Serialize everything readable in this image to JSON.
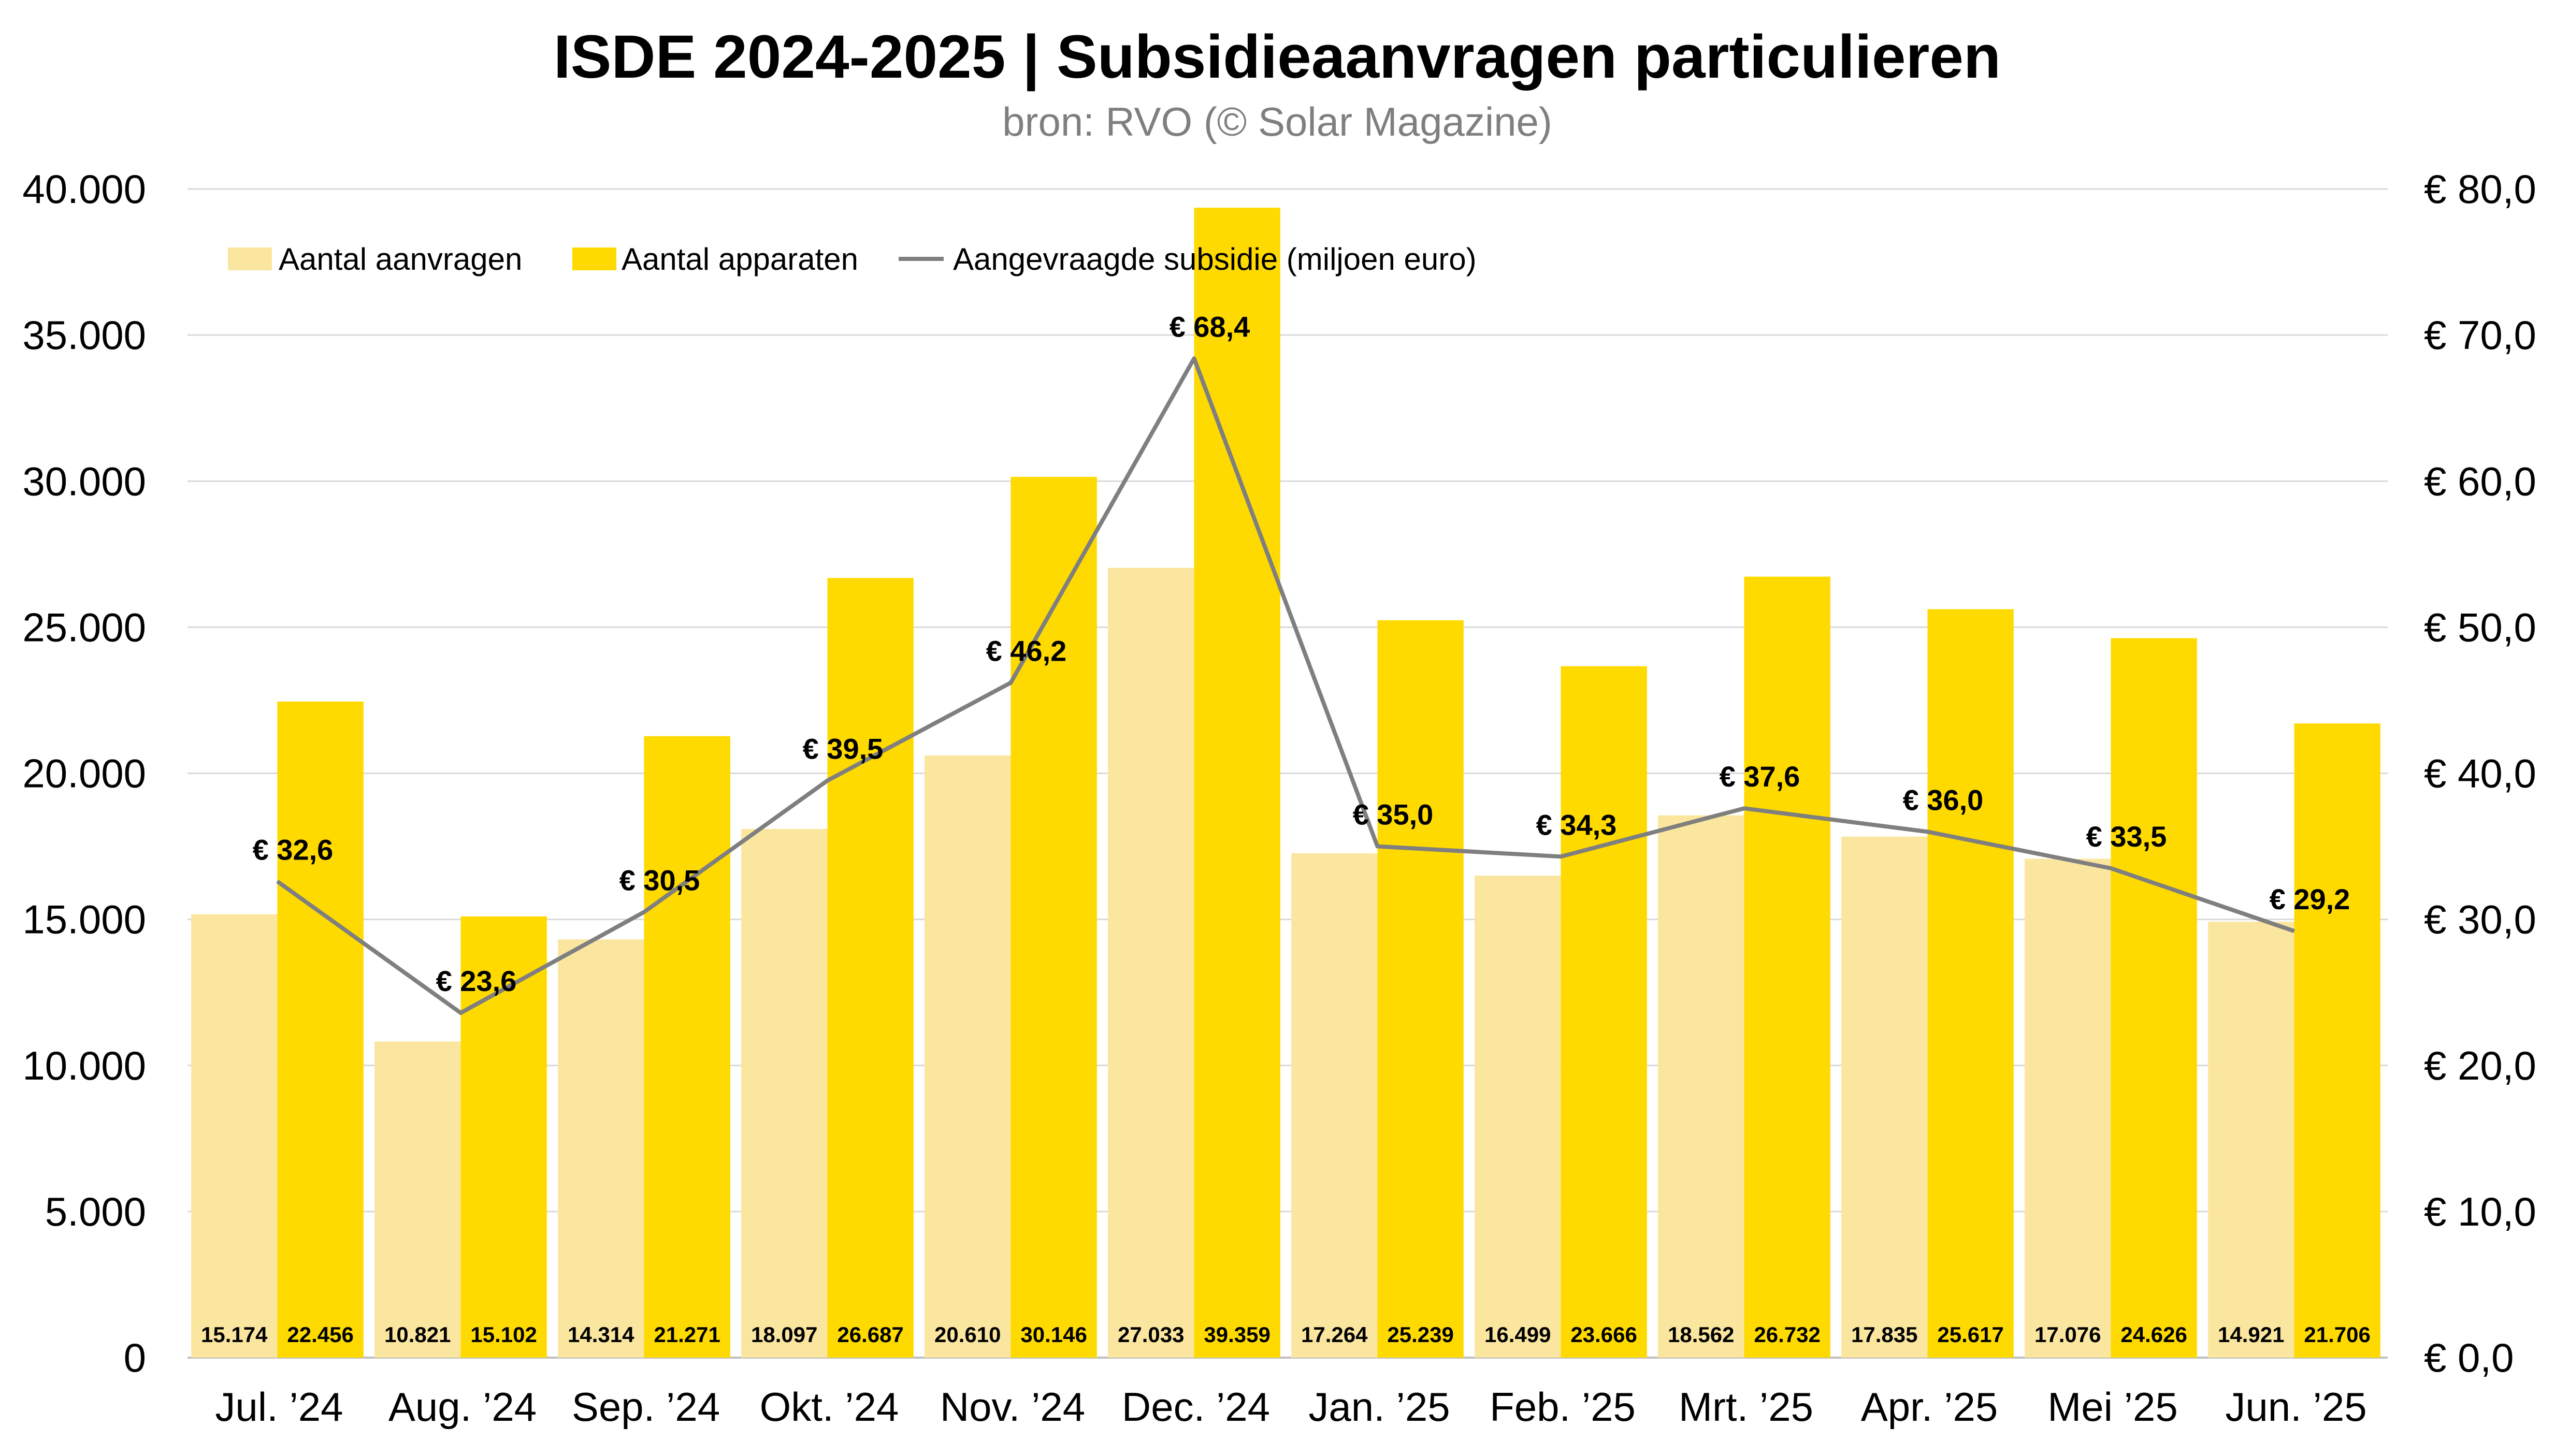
{
  "chart_data": {
    "type": "bar",
    "title": "ISDE 2024-2025 | Subsidieaanvragen particulieren",
    "subtitle": "bron: RVO (© Solar Magazine)",
    "categories": [
      "Jul. ’24",
      "Aug. ’24",
      "Sep. ’24",
      "Okt. ’24",
      "Nov. ’24",
      "Dec. ’24",
      "Jan. ’25",
      "Feb. ’25",
      "Mrt. ’25",
      "Apr. ’25",
      "Mei ’25",
      "Jun. ’25"
    ],
    "series": [
      {
        "name": "Aantal aanvragen",
        "type": "bar",
        "axis": "left",
        "color": "#FBE6A0",
        "values": [
          15174,
          10821,
          14314,
          18097,
          20610,
          27033,
          17264,
          16499,
          18562,
          17835,
          17076,
          14921
        ],
        "labels": [
          "15.174",
          "10.821",
          "14.314",
          "18.097",
          "20.610",
          "27.033",
          "17.264",
          "16.499",
          "18.562",
          "17.835",
          "17.076",
          "14.921"
        ]
      },
      {
        "name": "Aantal apparaten",
        "type": "bar",
        "axis": "left",
        "color": "#FFDA00",
        "values": [
          22456,
          15102,
          21271,
          26687,
          30146,
          39359,
          25239,
          23666,
          26732,
          25617,
          24626,
          21706
        ],
        "labels": [
          "22.456",
          "15.102",
          "21.271",
          "26.687",
          "30.146",
          "39.359",
          "25.239",
          "23.666",
          "26.732",
          "25.617",
          "24.626",
          "21.706"
        ]
      },
      {
        "name": "Aangevraagde subsidie (miljoen euro)",
        "type": "line",
        "axis": "right",
        "color": "#7F7F7F",
        "values": [
          32.6,
          23.6,
          30.5,
          39.5,
          46.2,
          68.4,
          35.0,
          34.3,
          37.6,
          36.0,
          33.5,
          29.2
        ],
        "labels": [
          "€ 32,6",
          "€ 23,6",
          "€ 30,5",
          "€ 39,5",
          "€ 46,2",
          "€ 68,4",
          "€ 35,0",
          "€ 34,3",
          "€ 37,6",
          "€ 36,0",
          "€ 33,5",
          "€ 29,2"
        ]
      }
    ],
    "y_left": {
      "range": [
        0,
        40000
      ],
      "ticks": [
        0,
        5000,
        10000,
        15000,
        20000,
        25000,
        30000,
        35000,
        40000
      ],
      "tick_labels": [
        "0",
        "5.000",
        "10.000",
        "15.000",
        "20.000",
        "25.000",
        "30.000",
        "35.000",
        "40.000"
      ]
    },
    "y_right": {
      "range": [
        0,
        80
      ],
      "ticks": [
        0,
        10,
        20,
        30,
        40,
        50,
        60,
        70,
        80
      ],
      "tick_labels": [
        "€ 0,0",
        "€ 10,0",
        "€ 20,0",
        "€ 30,0",
        "€ 40,0",
        "€ 50,0",
        "€ 60,0",
        "€ 70,0",
        "€ 80,0"
      ]
    },
    "grid": true,
    "legend_position": "top-left"
  }
}
